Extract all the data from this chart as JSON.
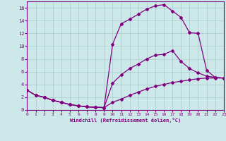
{
  "xlabel": "Windchill (Refroidissement éolien,°C)",
  "bg_color": "#cce8e8",
  "line_color": "#800080",
  "grid_color": "#aacccc",
  "xlim": [
    0,
    23
  ],
  "ylim": [
    0,
    17
  ],
  "xticks": [
    0,
    1,
    2,
    3,
    4,
    5,
    6,
    7,
    8,
    9,
    10,
    11,
    12,
    13,
    14,
    15,
    16,
    17,
    18,
    19,
    20,
    21,
    22,
    23
  ],
  "yticks": [
    0,
    2,
    4,
    6,
    8,
    10,
    12,
    14,
    16
  ],
  "curve1_x": [
    0,
    1,
    2,
    3,
    4,
    5,
    6,
    7,
    8,
    9,
    10,
    11,
    12,
    13,
    14,
    15,
    16,
    17,
    18,
    19,
    20,
    21,
    22,
    23
  ],
  "curve1_y": [
    3.1,
    2.3,
    2.0,
    1.5,
    1.2,
    0.85,
    0.65,
    0.5,
    0.42,
    0.38,
    10.3,
    13.5,
    14.2,
    15.0,
    15.8,
    16.3,
    16.5,
    15.5,
    14.5,
    12.1,
    12.0,
    6.2,
    5.1,
    5.0
  ],
  "curve2_x": [
    0,
    1,
    2,
    3,
    4,
    5,
    6,
    7,
    8,
    9,
    10,
    11,
    12,
    13,
    14,
    15,
    16,
    17,
    18,
    19,
    20,
    21,
    22,
    23
  ],
  "curve2_y": [
    3.1,
    2.3,
    2.0,
    1.5,
    1.2,
    0.85,
    0.65,
    0.5,
    0.42,
    0.38,
    4.2,
    5.5,
    6.5,
    7.2,
    8.0,
    8.6,
    8.7,
    9.3,
    7.6,
    6.5,
    5.8,
    5.3,
    5.1,
    5.0
  ],
  "curve3_x": [
    0,
    1,
    2,
    3,
    4,
    5,
    6,
    7,
    8,
    9,
    10,
    11,
    12,
    13,
    14,
    15,
    16,
    17,
    18,
    19,
    20,
    21,
    22,
    23
  ],
  "curve3_y": [
    3.1,
    2.3,
    2.0,
    1.5,
    1.2,
    0.85,
    0.65,
    0.5,
    0.42,
    0.38,
    1.2,
    1.7,
    2.3,
    2.8,
    3.3,
    3.7,
    4.0,
    4.3,
    4.5,
    4.7,
    4.9,
    5.0,
    5.0,
    5.0
  ]
}
